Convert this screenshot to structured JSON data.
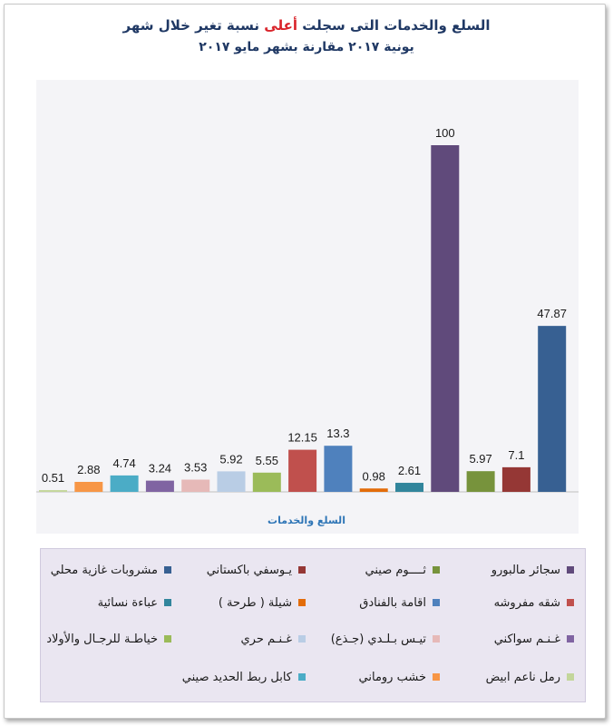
{
  "title": {
    "line1_before": "السلع والخدمات التى سجلت ",
    "line1_highlight": "أعلى",
    "line1_after": " نسبة تغير خلال شهر",
    "line2": "يونية ٢٠١٧ مقارنة بشهر مايو ٢٠١٧"
  },
  "chart_data": {
    "type": "bar",
    "xlabel": "السلع والخدمات",
    "ylabel": "",
    "ylim": [
      0,
      100
    ],
    "grid": false,
    "legend_position": "bottom",
    "categories": [
      "رمل ناعم ابيض",
      "خشب روماني",
      "كابل ربط الحديد صيني",
      "غـنـم سواكني",
      "تيـس بـلـدي (جـذع)",
      "غـنـم حري",
      "خياطـة للرجـال والأولاد",
      "شقه مفروشه",
      "اقامة بالفنادق",
      "شيلة ( طرحة )",
      "عباءة نسائية",
      "سجائر مالبورو",
      "ثــــوم صيني",
      "يـوسفي باكستاني",
      "مشروبات غازية محلي"
    ],
    "values": [
      0.51,
      2.88,
      4.74,
      3.24,
      3.53,
      5.92,
      5.55,
      12.15,
      13.3,
      0.98,
      2.61,
      100,
      5.97,
      7.1,
      47.87
    ],
    "data_labels": [
      "0.51",
      "2.88",
      "4.74",
      "3.24",
      "3.53",
      "5.92",
      "5.55",
      "12.15",
      "13.3",
      "0.98",
      "2.61",
      "100",
      "5.97",
      "7.1",
      "47.87"
    ],
    "colors": [
      "#c3d69b",
      "#f79646",
      "#4bacc6",
      "#8064a2",
      "#e6b9b8",
      "#b9cde5",
      "#9bbb59",
      "#c0504d",
      "#4f81bd",
      "#e36c09",
      "#31859c",
      "#604a7b",
      "#77933c",
      "#953735",
      "#376092"
    ]
  },
  "legend": {
    "rows": [
      [
        {
          "label": "سجائر مالبورو",
          "color": "#604a7b"
        },
        {
          "label": "ثــــوم صيني",
          "color": "#77933c"
        },
        {
          "label": "يـوسفي باكستاني",
          "color": "#953735"
        },
        {
          "label": "مشروبات غازية محلي",
          "color": "#376092"
        }
      ],
      [
        {
          "label": "شقه مفروشه",
          "color": "#c0504d"
        },
        {
          "label": "اقامة بالفنادق",
          "color": "#4f81bd"
        },
        {
          "label": "شيلة ( طرحة )",
          "color": "#e36c09"
        },
        {
          "label": "عباءة نسائية",
          "color": "#31859c"
        }
      ],
      [
        {
          "label": "غـنـم سواكني",
          "color": "#8064a2"
        },
        {
          "label": "تيـس بـلـدي (جـذع)",
          "color": "#e6b9b8"
        },
        {
          "label": "غـنـم حري",
          "color": "#b9cde5"
        },
        {
          "label": "خياطـة للرجـال والأولاد",
          "color": "#9bbb59"
        }
      ],
      [
        {
          "label": "رمل ناعم ابيض",
          "color": "#c3d69b"
        },
        {
          "label": "خشب روماني",
          "color": "#f79646"
        },
        {
          "label": "كابل ربط الحديد صيني",
          "color": "#4bacc6"
        }
      ]
    ]
  }
}
